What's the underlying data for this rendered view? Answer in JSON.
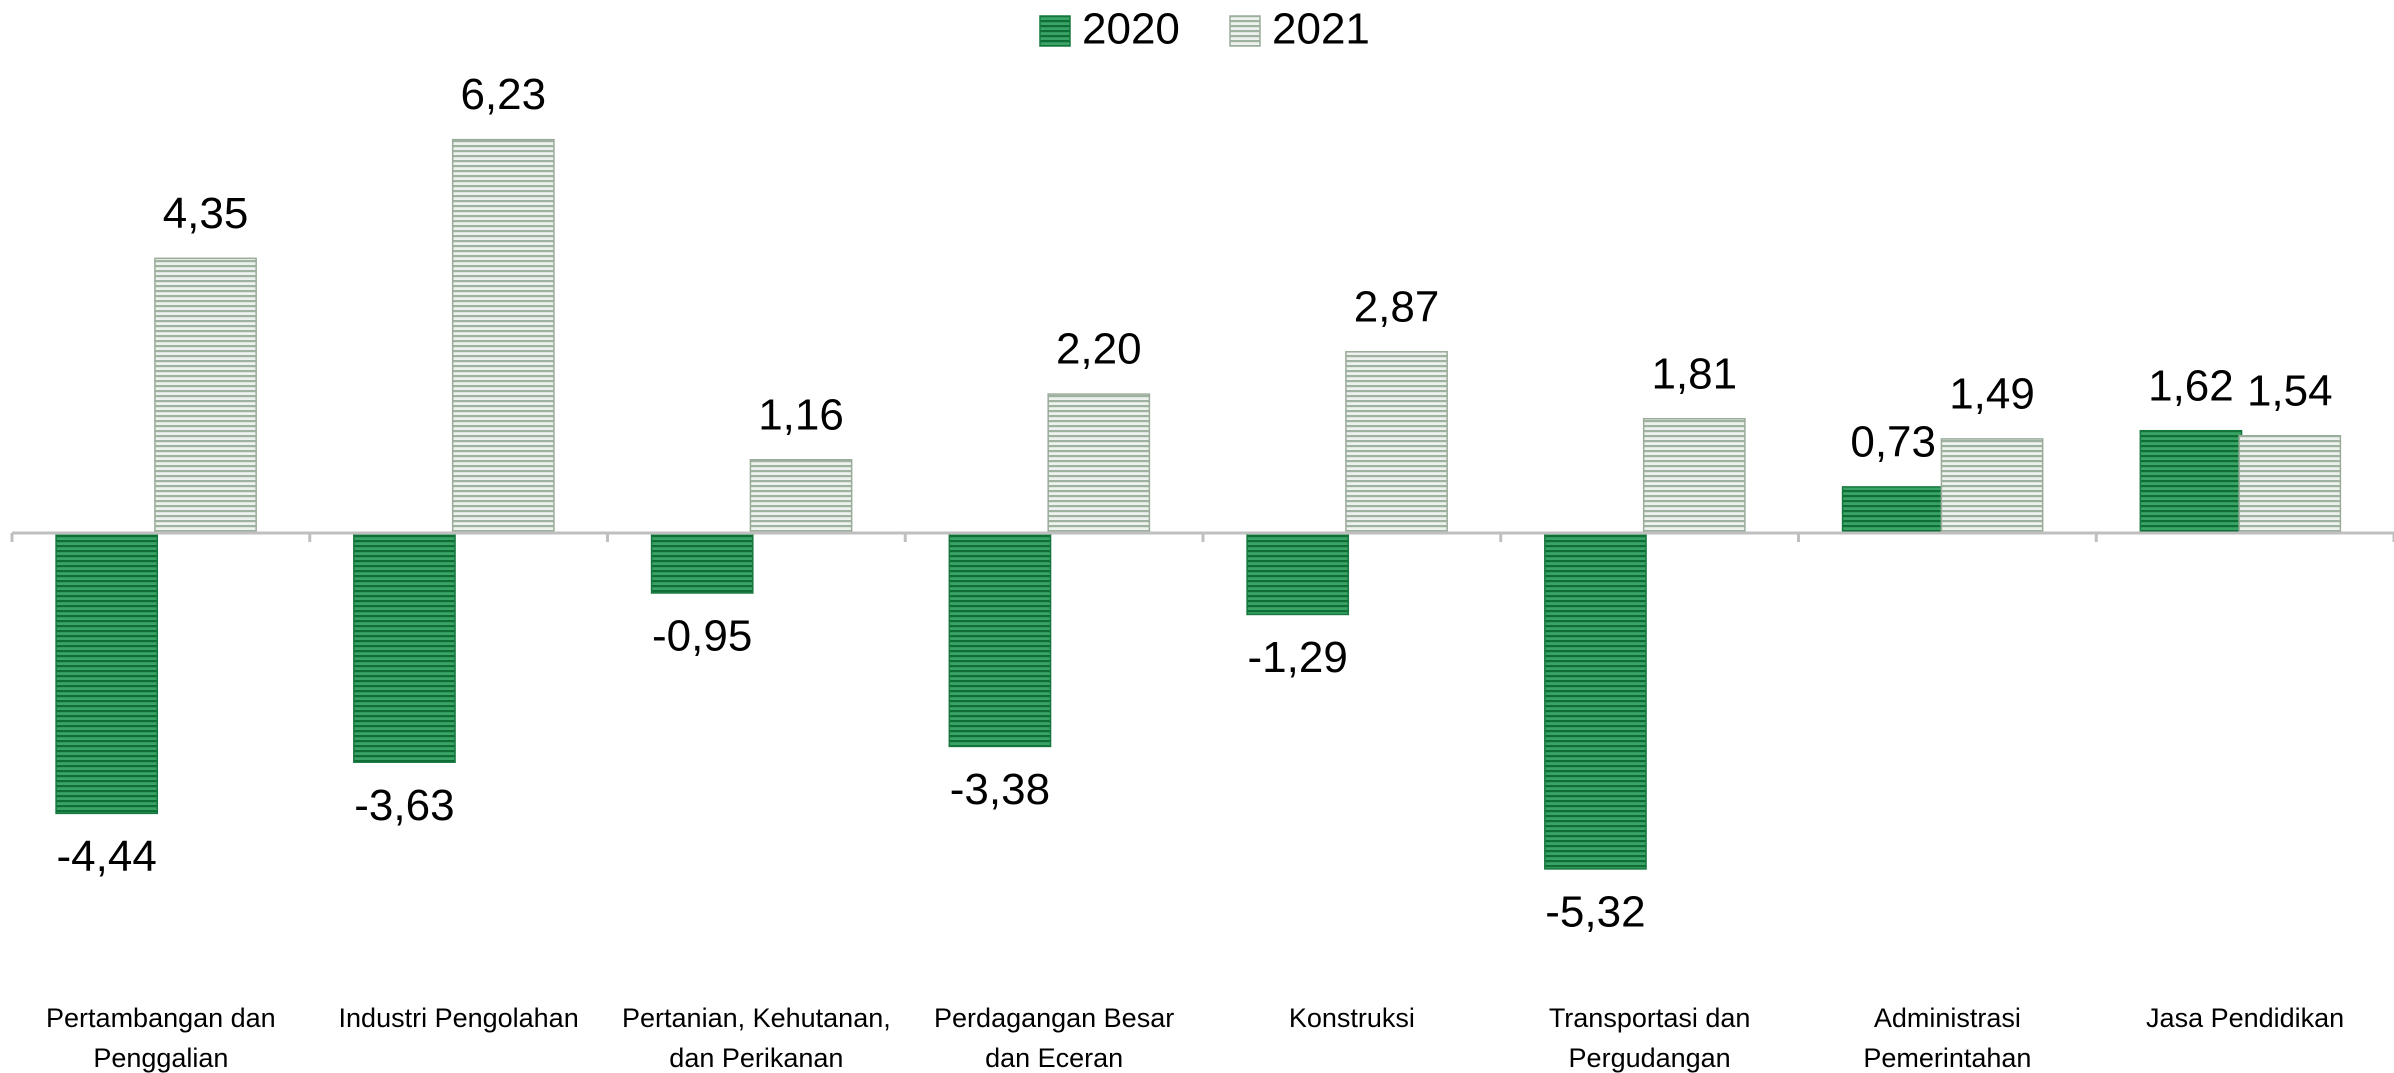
{
  "chart_data": {
    "type": "bar",
    "categories": [
      "Pertambangan dan Penggalian",
      "Industri Pengolahan",
      "Pertanian, Kehutanan, dan Perikanan",
      "Perdagangan Besar dan Eceran",
      "Konstruksi",
      "Transportasi dan Pergudangan",
      "Administrasi Pemerintahan",
      "Jasa Pendidikan"
    ],
    "series": [
      {
        "name": "2020",
        "color": "#1f8f4e",
        "values": [
          -4.44,
          -3.63,
          -0.95,
          -3.38,
          -1.29,
          -5.32,
          0.73,
          1.62
        ],
        "value_labels": [
          "-4,44",
          "-3,63",
          "-0,95",
          "-3,38",
          "-1,29",
          "-5,32",
          "0,73",
          "1,62"
        ]
      },
      {
        "name": "2021",
        "color": "#c3cfc3",
        "values": [
          4.35,
          6.23,
          1.16,
          2.2,
          2.87,
          1.81,
          1.49,
          1.54
        ],
        "value_labels": [
          "4,35",
          "6,23",
          "1,16",
          "2,20",
          "2,87",
          "1,81",
          "1,49",
          "1,54"
        ]
      }
    ],
    "ylim": [
      -7,
      7
    ],
    "legend": "top"
  }
}
